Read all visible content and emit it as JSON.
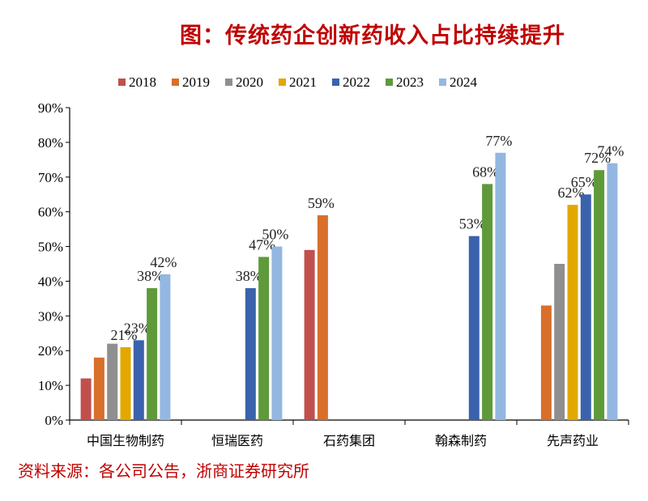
{
  "title": "图：传统药企创新药收入占比持续提升",
  "source": "资料来源：各公司公告，浙商证券研究所",
  "chart_data": {
    "type": "bar",
    "title": "图：传统药企创新药收入占比持续提升",
    "categories": [
      "中国生物制药",
      "恒瑞医药",
      "石药集团",
      "翰森制药",
      "先声药业"
    ],
    "ylim": [
      0,
      90
    ],
    "yticks": [
      "0%",
      "10%",
      "20%",
      "30%",
      "40%",
      "50%",
      "60%",
      "70%",
      "80%",
      "90%"
    ],
    "grid": false,
    "legend_position": "top",
    "series": [
      {
        "name": "2018",
        "color": "#c0504d",
        "values": [
          12,
          null,
          49,
          null,
          null
        ],
        "labels": [
          null,
          null,
          null,
          null,
          null
        ]
      },
      {
        "name": "2019",
        "color": "#d86f2b",
        "values": [
          18,
          null,
          59,
          null,
          33
        ],
        "labels": [
          null,
          null,
          "59%",
          null,
          null
        ]
      },
      {
        "name": "2020",
        "color": "#8f8f8f",
        "values": [
          22,
          null,
          null,
          null,
          45
        ],
        "labels": [
          null,
          null,
          null,
          null,
          null
        ]
      },
      {
        "name": "2021",
        "color": "#e3a800",
        "values": [
          21,
          null,
          null,
          null,
          62
        ],
        "labels": [
          "21%",
          null,
          null,
          null,
          "62%"
        ]
      },
      {
        "name": "2022",
        "color": "#3a62ad",
        "values": [
          23,
          38,
          null,
          53,
          65
        ],
        "labels": [
          "23%",
          "38%",
          null,
          "53%",
          "65%"
        ]
      },
      {
        "name": "2023",
        "color": "#5e9a3a",
        "values": [
          38,
          47,
          null,
          68,
          72
        ],
        "labels": [
          "38%",
          "47%",
          null,
          "68%",
          "72%"
        ]
      },
      {
        "name": "2024",
        "color": "#93b7e0",
        "values": [
          42,
          50,
          null,
          77,
          74
        ],
        "labels": [
          "42%",
          "50%",
          null,
          "77%",
          "74%"
        ]
      }
    ]
  }
}
